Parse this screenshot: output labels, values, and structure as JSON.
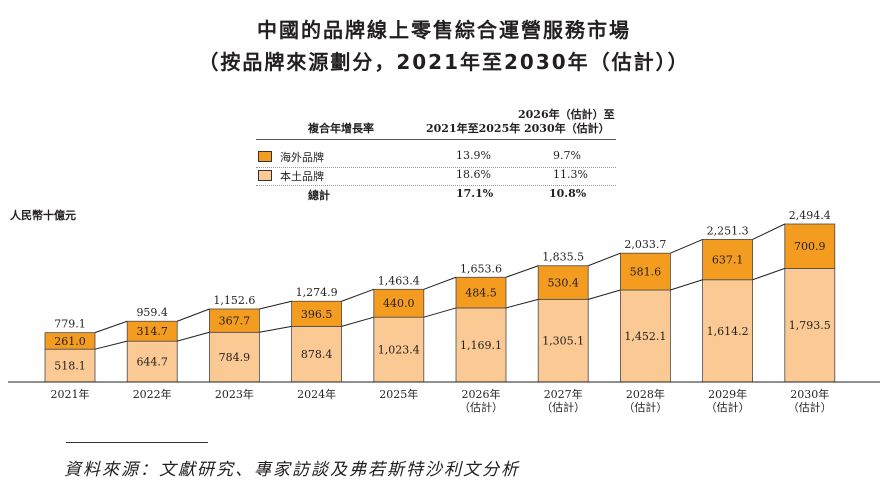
{
  "title": "中國的品牌線上零售綜合運營服務市場",
  "subtitle": "（按品牌來源劃分，2021年至2030年（估計））",
  "growth_table": {
    "header_label": "複合年增長率",
    "col1_header": "2021年至2025年",
    "col2_header_line1": "2026年（估計）至",
    "col2_header_line2": "2030年（估計）",
    "rows": [
      {
        "label": "海外品牌",
        "v1": "13.9%",
        "v2": "9.7%",
        "color": "#f39c1f"
      },
      {
        "label": "本土品牌",
        "v1": "18.6%",
        "v2": "11.3%",
        "color": "#fbc994"
      }
    ],
    "total": {
      "label": "總計",
      "v1": "17.1%",
      "v2": "10.8%"
    }
  },
  "unit_label": "人民幣十億元",
  "source": "資料來源：文獻研究、專家訪談及弗若斯特沙利文分析",
  "chart_data": {
    "type": "bar",
    "stacked": true,
    "categories": [
      "2021年",
      "2022年",
      "2023年",
      "2024年",
      "2025年",
      "2026年\n（估計）",
      "2027年\n（估計）",
      "2028年\n（估計）",
      "2029年\n（估計）",
      "2030年\n（估計）"
    ],
    "series": [
      {
        "name": "本土品牌",
        "color": "#fbc994",
        "values": [
          518.1,
          644.7,
          784.9,
          878.4,
          1023.4,
          1169.1,
          1305.1,
          1452.1,
          1614.2,
          1793.5
        ],
        "labels": [
          "518.1",
          "644.7",
          "784.9",
          "878.4",
          "1,023.4",
          "1,169.1",
          "1,305.1",
          "1,452.1",
          "1,614.2",
          "1,793.5"
        ]
      },
      {
        "name": "海外品牌",
        "color": "#f39c1f",
        "values": [
          261.0,
          314.7,
          367.7,
          396.5,
          440.0,
          484.5,
          530.4,
          581.6,
          637.1,
          700.9
        ],
        "labels": [
          "261.0",
          "314.7",
          "367.7",
          "396.5",
          "440.0",
          "484.5",
          "530.4",
          "581.6",
          "637.1",
          "700.9"
        ]
      }
    ],
    "totals": [
      "779.1",
      "959.4",
      "1,152.6",
      "1,274.9",
      "1,463.4",
      "1,653.6",
      "1,835.5",
      "2,033.7",
      "2,251.3",
      "2,494.4"
    ],
    "ylim": [
      0,
      2494.4
    ],
    "connector_lines": true,
    "grid": false
  }
}
